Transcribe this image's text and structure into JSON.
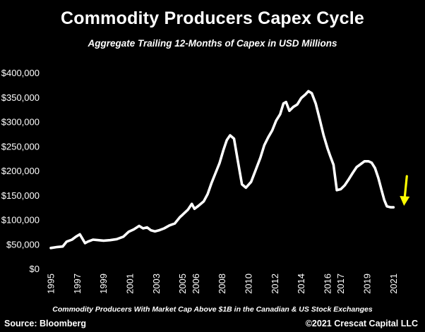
{
  "chart_data": {
    "type": "line",
    "title": "Commodity Producers Capex Cycle",
    "subtitle": "Aggregate Trailing 12-Months of Capex in USD Millions",
    "footnote": "Commodity Producers With Market Cap Above $1B in the Canadian & US Stock Exchanges",
    "source": "Source: Bloomberg",
    "copyright": "©2021 Crescat Capital LLC",
    "xlabel": "",
    "ylabel": "",
    "xlim": [
      1995,
      2022
    ],
    "ylim": [
      0,
      400000
    ],
    "grid": false,
    "x_ticks": [
      "1995",
      "1997",
      "1999",
      "2001",
      "2003",
      "2005",
      "2006",
      "2008",
      "2010",
      "2012",
      "2014",
      "2016",
      "2017",
      "2019",
      "2021"
    ],
    "x_tick_positions": [
      1995,
      1997,
      1999,
      2001,
      2003,
      2005,
      2006,
      2008,
      2010,
      2012,
      2014,
      2016,
      2017,
      2019,
      2021
    ],
    "y_ticks": [
      "$0",
      "$50,000",
      "$100,000",
      "$150,000",
      "$200,000",
      "$250,000",
      "$300,000",
      "$350,000",
      "$400,000"
    ],
    "y_tick_values": [
      0,
      50000,
      100000,
      150000,
      200000,
      250000,
      300000,
      350000,
      400000
    ],
    "line_color": "#ffffff",
    "arrow_color": "#ffff00",
    "annotation_arrow": {
      "direction": "down",
      "x": 2021.8
    },
    "series": [
      {
        "name": "Aggregate Trailing 12-Months Capex",
        "x": [
          1995.0,
          1995.5,
          1995.9,
          1996.2,
          1996.6,
          1996.9,
          1997.2,
          1997.6,
          1997.8,
          1998.2,
          1998.6,
          1999.0,
          1999.5,
          2000.0,
          2000.5,
          2000.9,
          2001.3,
          2001.7,
          2002.0,
          2002.3,
          2002.6,
          2002.9,
          2003.2,
          2003.6,
          2004.0,
          2004.4,
          2004.8,
          2005.0,
          2005.4,
          2005.7,
          2005.9,
          2006.2,
          2006.6,
          2006.9,
          2007.2,
          2007.5,
          2007.8,
          2008.1,
          2008.35,
          2008.6,
          2008.9,
          2009.2,
          2009.5,
          2009.8,
          2010.2,
          2010.6,
          2010.9,
          2011.2,
          2011.5,
          2011.8,
          2012.1,
          2012.4,
          2012.65,
          2012.85,
          2013.1,
          2013.4,
          2013.7,
          2014.0,
          2014.3,
          2014.55,
          2014.8,
          2015.1,
          2015.4,
          2015.7,
          2016.0,
          2016.2,
          2016.45,
          2016.7,
          2017.0,
          2017.3,
          2017.6,
          2017.9,
          2018.2,
          2018.5,
          2018.8,
          2019.1,
          2019.35,
          2019.6,
          2019.85,
          2020.1,
          2020.3,
          2020.5,
          2020.8,
          2021.0
        ],
        "y": [
          42000,
          44000,
          45000,
          55000,
          59000,
          65000,
          70000,
          52000,
          55000,
          59000,
          58000,
          57000,
          58000,
          60000,
          65000,
          75000,
          80000,
          87000,
          82000,
          84000,
          78000,
          76000,
          78000,
          82000,
          88000,
          92000,
          105000,
          110000,
          120000,
          132000,
          122000,
          128000,
          137000,
          152000,
          175000,
          195000,
          215000,
          242000,
          262000,
          272000,
          265000,
          218000,
          172000,
          165000,
          177000,
          205000,
          226000,
          252000,
          268000,
          282000,
          302000,
          315000,
          337000,
          340000,
          322000,
          330000,
          335000,
          348000,
          355000,
          362000,
          358000,
          337000,
          305000,
          272000,
          245000,
          230000,
          212000,
          160000,
          162000,
          170000,
          182000,
          195000,
          207000,
          213000,
          219000,
          219000,
          216000,
          205000,
          185000,
          160000,
          140000,
          127000,
          125000,
          125000
        ]
      }
    ]
  }
}
